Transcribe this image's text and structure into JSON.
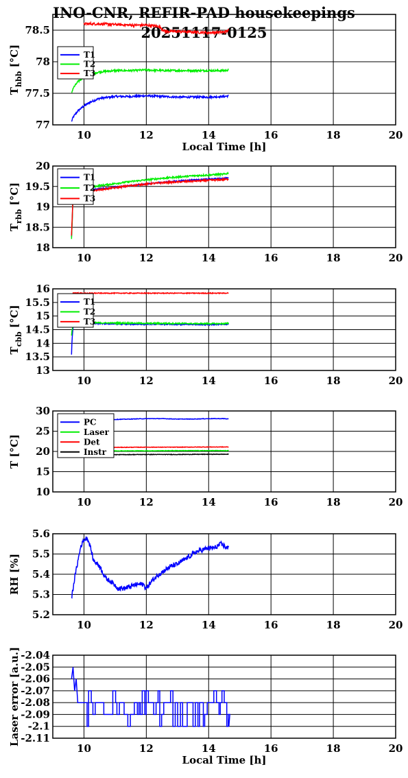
{
  "title": {
    "line1": "INO-CNR, REFIR-PAD housekeepings",
    "line2": "20251117-0125"
  },
  "colors": {
    "blue": "#0000ff",
    "green": "#00ee00",
    "red": "#ff0000",
    "black": "#000000"
  },
  "chart_data": [
    {
      "type": "line",
      "ylabel": "T_hbb [°C]",
      "ylabel_main": "T",
      "ylabel_sub": "hbb",
      "ylabel_unit": " [°C]",
      "xlabel": "Local Time [h]",
      "xlim": [
        9,
        20
      ],
      "ylim": [
        77,
        78.75
      ],
      "xticks": [
        "10",
        "12",
        "14",
        "16",
        "18",
        "20"
      ],
      "yticks": [
        {
          "v": 77,
          "t": "77"
        },
        {
          "v": 77.5,
          "t": "77.5"
        },
        {
          "v": 78,
          "t": "78"
        },
        {
          "v": 78.5,
          "t": "78.5"
        }
      ],
      "grid": true,
      "legend_position": "top-left",
      "series": [
        {
          "name": "T1",
          "color": "#0000ff",
          "x": [
            9.6,
            9.65,
            9.8,
            10,
            10.2,
            10.5,
            11,
            11.5,
            12,
            12.5,
            13,
            13.5,
            14,
            14.5,
            14.65
          ],
          "y": [
            77.05,
            77.12,
            77.22,
            77.3,
            77.36,
            77.42,
            77.45,
            77.45,
            77.46,
            77.45,
            77.44,
            77.44,
            77.44,
            77.45,
            77.46
          ],
          "noise": 0.015
        },
        {
          "name": "T2",
          "color": "#00ee00",
          "x": [
            9.6,
            9.65,
            9.8,
            10,
            10.2,
            10.5,
            11,
            11.5,
            12,
            12.5,
            13,
            13.5,
            14,
            14.5,
            14.65
          ],
          "y": [
            77.5,
            77.58,
            77.68,
            77.76,
            77.8,
            77.84,
            77.86,
            77.86,
            77.87,
            77.86,
            77.86,
            77.86,
            77.86,
            77.86,
            77.87
          ],
          "noise": 0.015
        },
        {
          "name": "T3",
          "color": "#ff0000",
          "x": [
            10,
            10.5,
            11,
            11.5,
            12,
            12.4,
            12.6,
            13,
            13.5,
            14,
            14.5,
            14.65
          ],
          "y": [
            78.6,
            78.6,
            78.59,
            78.58,
            78.58,
            78.56,
            78.48,
            78.48,
            78.47,
            78.46,
            78.47,
            78.5
          ],
          "noise": 0.02
        }
      ]
    },
    {
      "type": "line",
      "ylabel": "T_rbb [°C]",
      "ylabel_main": "T",
      "ylabel_sub": "rbb",
      "ylabel_unit": " [°C]",
      "xlabel": "",
      "xlim": [
        9,
        20
      ],
      "ylim": [
        18,
        20
      ],
      "xticks": [
        "10",
        "12",
        "14",
        "16",
        "18",
        "20"
      ],
      "yticks": [
        {
          "v": 18,
          "t": "18"
        },
        {
          "v": 18.5,
          "t": "18.5"
        },
        {
          "v": 19,
          "t": "19"
        },
        {
          "v": 19.5,
          "t": "19.5"
        },
        {
          "v": 20,
          "t": "20"
        }
      ],
      "grid": true,
      "legend_position": "top-left",
      "series": [
        {
          "name": "T1",
          "color": "#0000ff",
          "x": [
            9.6,
            9.62,
            9.65,
            9.8,
            10,
            10.5,
            11,
            11.5,
            12,
            12.5,
            13,
            13.5,
            14,
            14.5,
            14.65
          ],
          "y": [
            18.25,
            18.6,
            19.3,
            19.35,
            19.4,
            19.44,
            19.48,
            19.52,
            19.56,
            19.6,
            19.63,
            19.66,
            19.68,
            19.7,
            19.71
          ],
          "noise": 0.015
        },
        {
          "name": "T2",
          "color": "#00ee00",
          "x": [
            9.6,
            9.62,
            9.65,
            9.8,
            10,
            10.5,
            11,
            11.5,
            12,
            12.5,
            13,
            13.5,
            14,
            14.5,
            14.65
          ],
          "y": [
            18.2,
            18.6,
            19.35,
            19.4,
            19.45,
            19.52,
            19.57,
            19.62,
            19.66,
            19.7,
            19.73,
            19.76,
            19.78,
            19.8,
            19.83
          ],
          "noise": 0.02
        },
        {
          "name": "T3",
          "color": "#ff0000",
          "x": [
            9.6,
            9.62,
            9.65,
            9.8,
            10,
            10.5,
            11,
            11.5,
            12,
            12.5,
            13,
            13.5,
            14,
            14.5,
            14.65
          ],
          "y": [
            18.3,
            18.7,
            19.3,
            19.33,
            19.37,
            19.42,
            19.47,
            19.52,
            19.56,
            19.59,
            19.61,
            19.63,
            19.65,
            19.67,
            19.68
          ],
          "noise": 0.02
        }
      ]
    },
    {
      "type": "line",
      "ylabel": "T_cbb [°C]",
      "ylabel_main": "T",
      "ylabel_sub": "cbb",
      "ylabel_unit": " [°C]",
      "xlabel": "",
      "xlim": [
        9,
        20
      ],
      "ylim": [
        13,
        16
      ],
      "xticks": [
        "10",
        "12",
        "14",
        "16",
        "18",
        "20"
      ],
      "yticks": [
        {
          "v": 13,
          "t": "13"
        },
        {
          "v": 13.5,
          "t": "13.5"
        },
        {
          "v": 14,
          "t": "14"
        },
        {
          "v": 14.5,
          "t": "14.5"
        },
        {
          "v": 15,
          "t": "15"
        },
        {
          "v": 15.5,
          "t": "15.5"
        },
        {
          "v": 16,
          "t": "16"
        }
      ],
      "grid": true,
      "legend_position": "top-left",
      "series": [
        {
          "name": "T1",
          "color": "#0000ff",
          "x": [
            9.6,
            9.62,
            9.65,
            9.7,
            10,
            10.5,
            11,
            11.5,
            12,
            12.5,
            13,
            13.5,
            14,
            14.5,
            14.65
          ],
          "y": [
            13.6,
            14.2,
            14.6,
            14.7,
            14.72,
            14.72,
            14.71,
            14.7,
            14.7,
            14.7,
            14.69,
            14.69,
            14.69,
            14.69,
            14.7
          ],
          "noise": 0.02
        },
        {
          "name": "T2",
          "color": "#00ee00",
          "x": [
            9.6,
            9.62,
            9.65,
            9.7,
            10,
            10.5,
            11,
            11.5,
            12,
            12.5,
            13,
            13.5,
            14,
            14.5,
            14.65
          ],
          "y": [
            14.3,
            14.5,
            14.7,
            14.74,
            14.75,
            14.75,
            14.74,
            14.74,
            14.73,
            14.73,
            14.73,
            14.72,
            14.72,
            14.72,
            14.73
          ],
          "noise": 0.025
        },
        {
          "name": "T3",
          "color": "#ff0000",
          "x": [
            9.6,
            9.62,
            9.65,
            10,
            10.5,
            11,
            11.5,
            12,
            12.5,
            13,
            13.5,
            14,
            14.5,
            14.65
          ],
          "y": [
            15.2,
            15.7,
            15.85,
            15.84,
            15.84,
            15.84,
            15.84,
            15.84,
            15.84,
            15.84,
            15.84,
            15.84,
            15.84,
            15.85
          ],
          "noise": 0.015
        }
      ]
    },
    {
      "type": "line",
      "ylabel": "T [°C]",
      "ylabel_main": "T [°C]",
      "ylabel_sub": "",
      "ylabel_unit": "",
      "xlabel": "",
      "xlim": [
        9,
        20
      ],
      "ylim": [
        10,
        30
      ],
      "xticks": [
        "10",
        "12",
        "14",
        "16",
        "18",
        "20"
      ],
      "yticks": [
        {
          "v": 10,
          "t": "10"
        },
        {
          "v": 15,
          "t": "15"
        },
        {
          "v": 20,
          "t": "20"
        },
        {
          "v": 25,
          "t": "25"
        },
        {
          "v": 30,
          "t": "30"
        }
      ],
      "grid": true,
      "legend_position": "top-left",
      "series": [
        {
          "name": "PC",
          "color": "#0000ff",
          "x": [
            9.6,
            10,
            10.5,
            11,
            11.5,
            12,
            12.5,
            13,
            13.5,
            14,
            14.5,
            14.65
          ],
          "y": [
            27.2,
            27.6,
            27.8,
            27.9,
            28,
            28.1,
            28.1,
            28,
            28,
            28.1,
            28.1,
            28
          ],
          "noise": 0.06
        },
        {
          "name": "Laser",
          "color": "#00ee00",
          "x": [
            9.6,
            10,
            11,
            12,
            13,
            14,
            14.65
          ],
          "y": [
            20.1,
            20.1,
            20.15,
            20.15,
            20.2,
            20.2,
            20.2
          ],
          "noise": 0.06
        },
        {
          "name": "Det",
          "color": "#ff0000",
          "x": [
            9.6,
            10,
            11,
            12,
            13,
            14,
            14.65
          ],
          "y": [
            21,
            21,
            21,
            21.05,
            21.05,
            21.1,
            21.1
          ],
          "noise": 0.06
        },
        {
          "name": "Instr",
          "color": "#000000",
          "x": [
            9.6,
            10,
            11,
            12,
            13,
            14,
            14.65
          ],
          "y": [
            19.2,
            19.2,
            19.2,
            19.25,
            19.25,
            19.3,
            19.3
          ],
          "noise": 0.06
        }
      ]
    },
    {
      "type": "line",
      "ylabel": "RH [%]",
      "ylabel_main": "RH [%]",
      "ylabel_sub": "",
      "ylabel_unit": "",
      "xlabel": "",
      "xlim": [
        9,
        20
      ],
      "ylim": [
        5.2,
        5.6
      ],
      "xticks": [
        "10",
        "12",
        "14",
        "16",
        "18",
        "20"
      ],
      "yticks": [
        {
          "v": 5.2,
          "t": "5.2"
        },
        {
          "v": 5.3,
          "t": "5.3"
        },
        {
          "v": 5.4,
          "t": "5.4"
        },
        {
          "v": 5.5,
          "t": "5.5"
        },
        {
          "v": 5.6,
          "t": "5.6"
        }
      ],
      "grid": true,
      "legend_position": "none",
      "series": [
        {
          "name": "",
          "color": "#0000ff",
          "x": [
            9.6,
            9.7,
            9.8,
            9.9,
            10,
            10.1,
            10.2,
            10.3,
            10.5,
            10.7,
            10.9,
            11.1,
            11.3,
            11.5,
            11.7,
            11.9,
            12,
            12.2,
            12.4,
            12.6,
            12.8,
            13,
            13.2,
            13.4,
            13.6,
            13.8,
            14,
            14.2,
            14.4,
            14.6,
            14.65
          ],
          "y": [
            5.28,
            5.38,
            5.46,
            5.54,
            5.57,
            5.58,
            5.54,
            5.47,
            5.44,
            5.38,
            5.36,
            5.33,
            5.33,
            5.34,
            5.35,
            5.35,
            5.33,
            5.37,
            5.4,
            5.42,
            5.44,
            5.45,
            5.47,
            5.49,
            5.51,
            5.52,
            5.53,
            5.53,
            5.55,
            5.53,
            5.53
          ],
          "noise": 0.012
        }
      ]
    },
    {
      "type": "line",
      "ylabel": "Laser error [a.u.]",
      "ylabel_main": "Laser error [a.u.]",
      "ylabel_sub": "",
      "ylabel_unit": "",
      "xlabel": "Local Time [h]",
      "xlim": [
        9,
        20
      ],
      "ylim": [
        -2.11,
        -2.04
      ],
      "xticks": [
        "10",
        "12",
        "14",
        "16",
        "18",
        "20"
      ],
      "yticks": [
        {
          "v": -2.11,
          "t": "-2.11"
        },
        {
          "v": -2.1,
          "t": "-2.1"
        },
        {
          "v": -2.09,
          "t": "-2.09"
        },
        {
          "v": -2.08,
          "t": "-2.08"
        },
        {
          "v": -2.07,
          "t": "-2.07"
        },
        {
          "v": -2.06,
          "t": "-2.06"
        },
        {
          "v": -2.05,
          "t": "-2.05"
        },
        {
          "v": -2.04,
          "t": "-2.04"
        }
      ],
      "grid": true,
      "legend_position": "none",
      "series": [
        {
          "name": "",
          "color": "#0000ff",
          "steps": true,
          "x": [
            9.6,
            9.65,
            9.7,
            9.75,
            9.8,
            14.65
          ],
          "y": [
            -2.06,
            -2.05,
            -2.07,
            -2.06,
            -2.08,
            -2.09
          ],
          "levels": [
            -2.07,
            -2.08,
            -2.09,
            -2.1
          ],
          "xstart": 9.8,
          "xend": 14.65
        }
      ]
    }
  ]
}
